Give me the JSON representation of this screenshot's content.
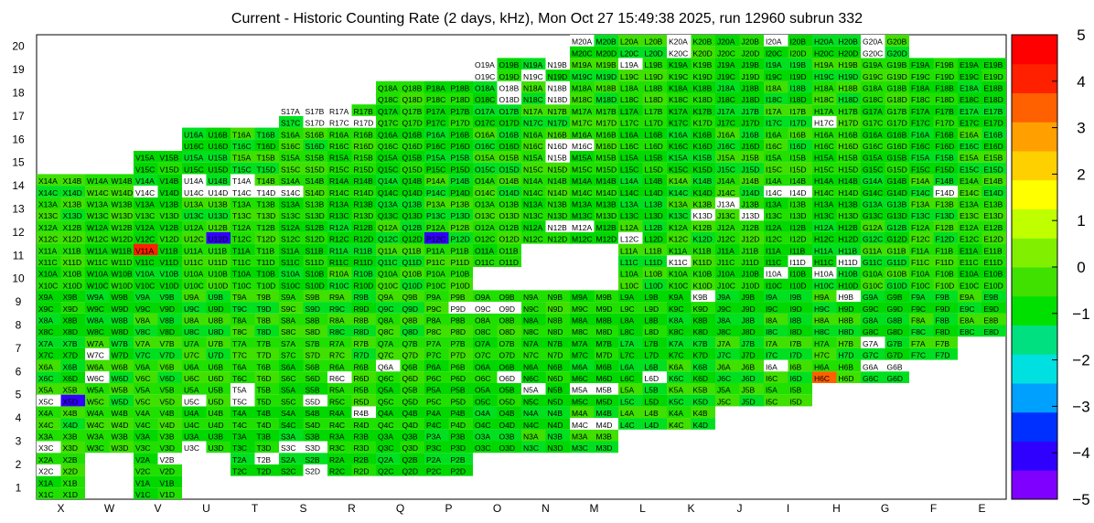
{
  "chart_data": {
    "type": "heatmap",
    "title": "Current - Historic Counting Rate (2 days, kHz), Mon Oct 27 15:49:38 2025, run 12960 subrun 332",
    "columns": [
      "X",
      "W",
      "V",
      "U",
      "T",
      "S",
      "R",
      "Q",
      "P",
      "O",
      "N",
      "M",
      "L",
      "K",
      "J",
      "I",
      "H",
      "G",
      "F",
      "E"
    ],
    "rows": [
      "1",
      "2",
      "3",
      "4",
      "5",
      "6",
      "7",
      "8",
      "9",
      "10",
      "11",
      "12",
      "13",
      "14",
      "15",
      "16",
      "17",
      "18",
      "19",
      "20"
    ],
    "zlim": [
      -5,
      5
    ],
    "colorbar_ticks": [
      "5",
      "4",
      "3",
      "2",
      "1",
      "0",
      "−1",
      "−2",
      "−3",
      "−4",
      "−5"
    ],
    "palette": [
      "#8000ff",
      "#3000ff",
      "#0030ff",
      "#00a0ff",
      "#00e0e0",
      "#00e080",
      "#00e000",
      "#40e000",
      "#80f000",
      "#c0ff00",
      "#ffff00",
      "#ffd000",
      "#ffa000",
      "#ff6000",
      "#ff2000",
      "#ff0000"
    ],
    "row_ranges": [
      [
        "X",
        "V"
      ],
      [
        "X",
        "P"
      ],
      [
        "X",
        "M"
      ],
      [
        "X",
        "K"
      ],
      [
        "X",
        "I"
      ],
      [
        "X",
        "G"
      ],
      [
        "X",
        "F"
      ],
      [
        "X",
        "E"
      ],
      [
        "X",
        "E"
      ],
      [
        "X",
        "E"
      ],
      [
        "X",
        "E"
      ],
      [
        "X",
        "E"
      ],
      [
        "X",
        "E"
      ],
      [
        "X",
        "E"
      ],
      [
        "V",
        "E"
      ],
      [
        "U",
        "E"
      ],
      [
        "S",
        "E"
      ],
      [
        "Q",
        "E"
      ],
      [
        "O",
        "E"
      ],
      [
        "M",
        "G"
      ]
    ],
    "missing": [
      "O10",
      "N10",
      "M10",
      "N11",
      "M11",
      "W1",
      "U1",
      "W2",
      "U2"
    ],
    "special": {
      "X5C": 0,
      "X5D": -3.8,
      "V11A": 3.8,
      "H6C": 3.4,
      "U12D": -3.8,
      "P12C": -4.2
    },
    "white": [
      "W7C",
      "W6C",
      "U5C",
      "T5C",
      "T5A",
      "S5D",
      "S3D",
      "S3C",
      "U3C",
      "X3C",
      "R6C",
      "R4B",
      "Q6A",
      "O6D",
      "P9D",
      "O9D",
      "O9C",
      "V2B",
      "W2B",
      "W2A",
      "T2B",
      "S2D",
      "N12B",
      "M12A",
      "L12C",
      "K11C",
      "I10A",
      "H11D",
      "H10A",
      "I14D",
      "K13D",
      "J13D",
      "J13A",
      "I14C",
      "F14D",
      "I11D",
      "N15B",
      "N16D",
      "M16C",
      "M20A",
      "K20A",
      "I20A",
      "G20A",
      "G20C",
      "H9B",
      "K9B",
      "L6D",
      "I6A",
      "G6A",
      "G6B",
      "M4D",
      "M4C",
      "M5A",
      "M5B",
      "N5A",
      "O18B",
      "O18D",
      "N18D",
      "N18B",
      "N19B",
      "O19A",
      "O19C",
      "N19C",
      "L19A",
      "K20C",
      "H17C",
      "G7A",
      "X2C",
      "R17C",
      "R17A",
      "R17D",
      "S17A",
      "S17D",
      "S17B",
      "T17B",
      "O10A",
      "O10B",
      "V14C",
      "U14A",
      "U14C",
      "T14A",
      "T14C",
      "T14D",
      "S14C",
      "U14D"
    ]
  }
}
